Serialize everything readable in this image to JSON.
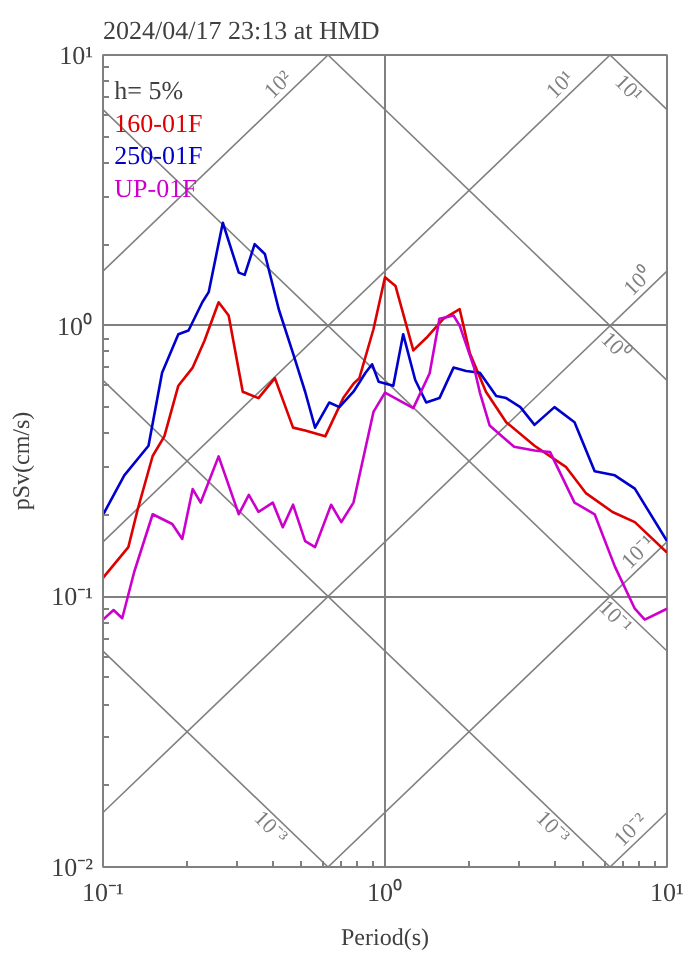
{
  "chart_data": {
    "type": "line",
    "title": "2024/04/17 23:13 at HMD",
    "xlabel": "Period(s)",
    "ylabel": "pSv(cm/s)",
    "log": "xy",
    "grid": true,
    "legend": "top left",
    "xlim": [
      0.1,
      10
    ],
    "ylim": [
      0.01,
      10
    ],
    "xticks": [
      {
        "value": 0.1,
        "label": "10⁻¹"
      },
      {
        "value": 1,
        "label": "10⁰"
      },
      {
        "value": 10,
        "label": "10¹"
      }
    ],
    "yticks": [
      {
        "value": 0.01,
        "label": "10⁻²"
      },
      {
        "value": 0.1,
        "label": "10⁻¹"
      },
      {
        "value": 1,
        "label": "10⁰"
      },
      {
        "value": 10,
        "label": "10¹"
      }
    ],
    "annotations": [
      "h= 5%",
      {
        "text": "10²",
        "x": 0.45,
        "y": 7.2
      },
      {
        "text": "10¹",
        "x": 4.5,
        "y": 7.2
      },
      {
        "text": "10¹",
        "x": 7.8,
        "y": 8.05
      },
      {
        "text": "10⁰",
        "x": 8.5,
        "y": 1.35
      },
      {
        "text": "10⁰",
        "x": 7,
        "y": 0.898
      },
      {
        "text": "10⁻¹",
        "x": 8.5,
        "y": 0.135
      },
      {
        "text": "10⁻¹",
        "x": 7,
        "y": 0.0898
      },
      {
        "text": "10⁻³",
        "x": 0.42,
        "y": 0.015
      },
      {
        "text": "10⁻³",
        "x": 4.2,
        "y": 0.015
      },
      {
        "text": "10⁻²",
        "x": 8.0,
        "y": 0.0127
      }
    ],
    "series": [
      {
        "color": "#808080",
        "x": [
          0.1,
          0.628
        ],
        "values": [
          1.59,
          10
        ]
      },
      {
        "color": "#808080",
        "x": [
          0.1,
          6.28
        ],
        "values": [
          0.159,
          10
        ]
      },
      {
        "color": "#808080",
        "x": [
          0.1,
          10
        ],
        "values": [
          0.0159,
          1.59
        ]
      },
      {
        "color": "#808080",
        "x": [
          0.628,
          10
        ],
        "values": [
          0.01,
          0.159
        ]
      },
      {
        "color": "#808080",
        "x": [
          6.28,
          10
        ],
        "values": [
          0.01,
          0.0159
        ]
      },
      {
        "color": "#808080",
        "x": [
          0.1,
          0.628
        ],
        "values": [
          0.0628,
          0.01
        ]
      },
      {
        "color": "#808080",
        "x": [
          0.1,
          6.28
        ],
        "values": [
          0.628,
          0.01
        ]
      },
      {
        "color": "#808080",
        "x": [
          0.1,
          10
        ],
        "values": [
          6.28,
          0.0628
        ]
      },
      {
        "color": "#808080",
        "x": [
          0.628,
          10
        ],
        "values": [
          10,
          0.628
        ]
      },
      {
        "color": "#808080",
        "x": [
          6.28,
          10
        ],
        "values": [
          10,
          6.28
        ]
      },
      {
        "name": "160-01F",
        "color": "#dd0000",
        "x": [
          0.1,
          0.123,
          0.133,
          0.15,
          0.165,
          0.185,
          0.208,
          0.229,
          0.257,
          0.279,
          0.313,
          0.356,
          0.407,
          0.472,
          0.521,
          0.614,
          0.711,
          0.773,
          0.811,
          0.91,
          1.0,
          1.09,
          1.26,
          1.4,
          1.61,
          1.84,
          2.0,
          2.28,
          2.69,
          3.39,
          4.39,
          5.17,
          6.41,
          7.69,
          10
        ],
        "values": [
          0.117,
          0.152,
          0.211,
          0.33,
          0.39,
          0.6,
          0.7,
          0.88,
          1.22,
          1.09,
          0.57,
          0.54,
          0.64,
          0.42,
          0.41,
          0.39,
          0.54,
          0.61,
          0.64,
          0.97,
          1.51,
          1.4,
          0.81,
          0.9,
          1.06,
          1.15,
          0.79,
          0.57,
          0.44,
          0.36,
          0.3,
          0.24,
          0.205,
          0.188,
          0.145
        ]
      },
      {
        "name": "250-01F",
        "color": "#0000cc",
        "x": [
          0.1,
          0.119,
          0.145,
          0.162,
          0.185,
          0.201,
          0.225,
          0.237,
          0.266,
          0.303,
          0.318,
          0.345,
          0.375,
          0.42,
          0.472,
          0.521,
          0.565,
          0.634,
          0.689,
          0.773,
          0.853,
          0.9,
          0.95,
          1.07,
          1.16,
          1.28,
          1.4,
          1.56,
          1.75,
          1.94,
          2.17,
          2.48,
          2.69,
          3.02,
          3.39,
          3.99,
          4.7,
          5.54,
          6.53,
          7.69,
          10
        ],
        "values": [
          0.2,
          0.28,
          0.36,
          0.67,
          0.93,
          0.96,
          1.22,
          1.33,
          2.4,
          1.57,
          1.54,
          2.0,
          1.84,
          1.15,
          0.79,
          0.57,
          0.42,
          0.52,
          0.5,
          0.57,
          0.67,
          0.72,
          0.62,
          0.6,
          0.93,
          0.63,
          0.52,
          0.54,
          0.7,
          0.68,
          0.67,
          0.55,
          0.54,
          0.5,
          0.43,
          0.5,
          0.44,
          0.29,
          0.28,
          0.25,
          0.16
        ]
      },
      {
        "name": "UP-01F",
        "color": "#cc00cc",
        "x": [
          0.1,
          0.109,
          0.117,
          0.129,
          0.15,
          0.176,
          0.191,
          0.208,
          0.222,
          0.257,
          0.303,
          0.329,
          0.356,
          0.4,
          0.434,
          0.472,
          0.521,
          0.565,
          0.644,
          0.7,
          0.773,
          0.91,
          1.0,
          1.26,
          1.44,
          1.56,
          1.75,
          1.84,
          2.07,
          2.17,
          2.35,
          2.87,
          3.39,
          3.85,
          4.7,
          5.54,
          6.53,
          7.69,
          8.34,
          10
        ],
        "values": [
          0.082,
          0.089,
          0.083,
          0.123,
          0.201,
          0.185,
          0.163,
          0.249,
          0.222,
          0.329,
          0.201,
          0.237,
          0.205,
          0.222,
          0.18,
          0.218,
          0.16,
          0.152,
          0.218,
          0.188,
          0.222,
          0.48,
          0.566,
          0.496,
          0.667,
          1.06,
          1.09,
          1.0,
          0.7,
          0.566,
          0.428,
          0.357,
          0.346,
          0.341,
          0.222,
          0.201,
          0.129,
          0.09,
          0.082,
          0.09
        ]
      }
    ]
  }
}
